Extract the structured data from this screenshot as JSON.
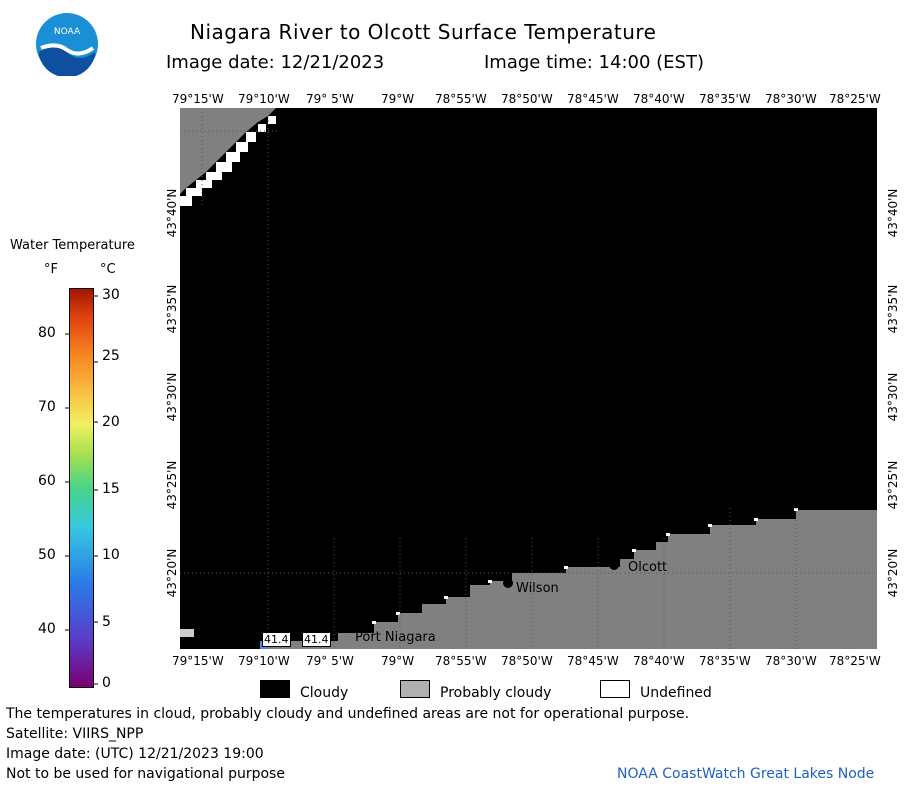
{
  "header": {
    "title": "Niagara River to Olcott Surface Temperature",
    "image_date": "Image date: 12/21/2023",
    "image_time": "Image time: 14:00 (EST)"
  },
  "logo": {
    "text": "NOAA"
  },
  "colors": {
    "cloudy": "#000000",
    "probably_cloudy": "#808080",
    "undefined": "#ffffff",
    "land": "#808080"
  },
  "longitude_ticks": [
    "79°15'W",
    "79°10'W",
    "79° 5'W",
    "79°W",
    "78°55'W",
    "78°50'W",
    "78°45'W",
    "78°40'W",
    "78°35'W",
    "78°30'W",
    "78°25'W"
  ],
  "latitude_ticks": [
    "43°40'N",
    "43°35'N",
    "43°30'N",
    "43°25'N",
    "43°20'N"
  ],
  "water_temperature": {
    "title": "Water Temperature",
    "unit_f": "°F",
    "unit_c": "°C",
    "f_ticks": [
      "80",
      "70",
      "60",
      "50",
      "40"
    ],
    "c_ticks": [
      "30",
      "25",
      "20",
      "15",
      "10",
      "5",
      "0"
    ]
  },
  "places": {
    "olcott": "Olcott",
    "wilson": "Wilson",
    "port_niagara": "Port Niagara",
    "reading_1": "41.4",
    "reading_2": "41.4"
  },
  "legend": {
    "cloudy": "Cloudy",
    "probably_cloudy": "Probably cloudy",
    "undefined": "Undefined"
  },
  "footer": {
    "note": "The temperatures in cloud, probably cloudy and undefined areas are not for operational purpose.",
    "satellite": "Satellite: VIIRS_NPP",
    "utc_date": "Image date: (UTC) 12/21/2023  19:00",
    "nav": "Not to be used for navigational purpose",
    "credit": "NOAA CoastWatch Great Lakes Node"
  }
}
